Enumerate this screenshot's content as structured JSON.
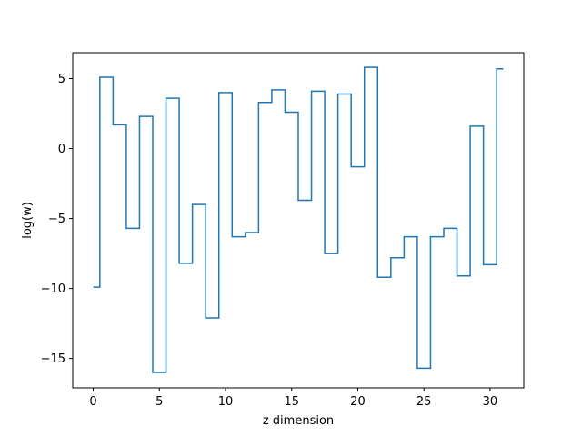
{
  "chart_data": {
    "type": "line",
    "drawstyle": "steps-mid",
    "xlabel": "z dimension",
    "ylabel": "log(w)",
    "xlim": [
      -1.55,
      32.55
    ],
    "ylim": [
      -17.1,
      6.85
    ],
    "xticks": [
      0,
      5,
      10,
      15,
      20,
      25,
      30
    ],
    "yticks": [
      -15,
      -10,
      -5,
      0,
      5
    ],
    "tick_labels_x": [
      "0",
      "5",
      "10",
      "15",
      "20",
      "25",
      "30"
    ],
    "tick_labels_y": [
      "−15",
      "−10",
      "−5",
      "0",
      "5"
    ],
    "grid": false,
    "line_color": "#1f77b4",
    "series": [
      {
        "x": [
          0,
          1,
          2,
          3,
          4,
          5,
          6,
          7,
          8,
          9,
          10,
          11,
          12,
          13,
          14,
          15,
          16,
          17,
          18,
          19,
          20,
          21,
          22,
          23,
          24,
          25,
          26,
          27,
          28,
          29,
          30,
          31
        ],
        "values": [
          -9.9,
          5.1,
          1.7,
          -5.7,
          2.3,
          -16.0,
          3.6,
          -8.2,
          -4.0,
          -12.1,
          4.0,
          -6.3,
          -6.0,
          3.3,
          4.2,
          2.6,
          -3.7,
          4.1,
          -7.5,
          3.9,
          -1.3,
          5.8,
          -9.2,
          -7.8,
          -6.3,
          -15.7,
          -6.3,
          -5.7,
          -9.1,
          1.6,
          -8.3,
          5.7
        ]
      }
    ]
  }
}
